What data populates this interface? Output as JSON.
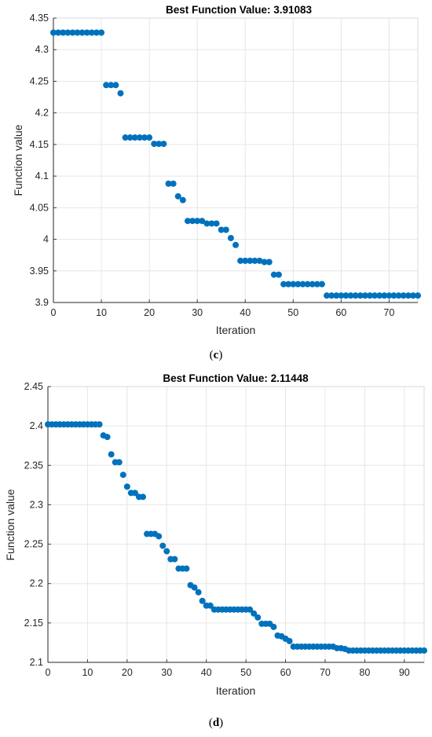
{
  "colors": {
    "marker": "#0072bd",
    "grid": "#e6e6e6"
  },
  "chart_data": [
    {
      "type": "scatter",
      "title": "Best Function Value: 3.91083",
      "xlabel": "Iteration",
      "ylabel": "Function value",
      "caption_pre": "(",
      "caption_letter": "c",
      "caption_post": ")",
      "xlim": [
        0,
        76
      ],
      "ylim": [
        3.9,
        4.35
      ],
      "xticks": [
        0,
        10,
        20,
        30,
        40,
        50,
        60,
        70
      ],
      "yticks": [
        3.9,
        3.95,
        4.0,
        4.05,
        4.1,
        4.15,
        4.2,
        4.25,
        4.3,
        4.35
      ],
      "xtick_labels": [
        "0",
        "10",
        "20",
        "30",
        "40",
        "50",
        "60",
        "70"
      ],
      "ytick_labels": [
        "3.9",
        "3.95",
        "4",
        "4.05",
        "4.1",
        "4.15",
        "4.2",
        "4.25",
        "4.3",
        "4.35"
      ],
      "grid": true,
      "x": [
        0,
        1,
        2,
        3,
        4,
        5,
        6,
        7,
        8,
        9,
        10,
        11,
        12,
        13,
        14,
        15,
        16,
        17,
        18,
        19,
        20,
        21,
        22,
        23,
        24,
        25,
        26,
        27,
        28,
        29,
        30,
        31,
        32,
        33,
        34,
        35,
        36,
        37,
        38,
        39,
        40,
        41,
        42,
        43,
        44,
        45,
        46,
        47,
        48,
        49,
        50,
        51,
        52,
        53,
        54,
        55,
        56,
        57,
        58,
        59,
        60,
        61,
        62,
        63,
        64,
        65,
        66,
        67,
        68,
        69,
        70,
        71,
        72,
        73,
        74,
        75,
        76
      ],
      "y": [
        4.327,
        4.327,
        4.327,
        4.327,
        4.327,
        4.327,
        4.327,
        4.327,
        4.327,
        4.327,
        4.327,
        4.244,
        4.244,
        4.244,
        4.231,
        4.161,
        4.161,
        4.161,
        4.161,
        4.161,
        4.161,
        4.151,
        4.151,
        4.151,
        4.088,
        4.088,
        4.068,
        4.062,
        4.029,
        4.029,
        4.029,
        4.029,
        4.025,
        4.025,
        4.025,
        4.015,
        4.015,
        4.002,
        3.991,
        3.966,
        3.966,
        3.966,
        3.966,
        3.966,
        3.964,
        3.964,
        3.944,
        3.944,
        3.929,
        3.929,
        3.929,
        3.929,
        3.929,
        3.929,
        3.929,
        3.929,
        3.929,
        3.911,
        3.911,
        3.911,
        3.911,
        3.911,
        3.911,
        3.911,
        3.911,
        3.911,
        3.911,
        3.911,
        3.911,
        3.911,
        3.911,
        3.911,
        3.911,
        3.911,
        3.911,
        3.911,
        3.911
      ]
    },
    {
      "type": "scatter",
      "title": "Best Function Value: 2.11448",
      "xlabel": "Iteration",
      "ylabel": "Function value",
      "caption_pre": "(",
      "caption_letter": "d",
      "caption_post": ")",
      "xlim": [
        0,
        95
      ],
      "ylim": [
        2.1,
        2.45
      ],
      "xticks": [
        0,
        10,
        20,
        30,
        40,
        50,
        60,
        70,
        80,
        90
      ],
      "yticks": [
        2.1,
        2.15,
        2.2,
        2.25,
        2.3,
        2.35,
        2.4,
        2.45
      ],
      "xtick_labels": [
        "0",
        "10",
        "20",
        "30",
        "40",
        "50",
        "60",
        "70",
        "80",
        "90"
      ],
      "ytick_labels": [
        "2.1",
        "2.15",
        "2.2",
        "2.25",
        "2.3",
        "2.35",
        "2.4",
        "2.45"
      ],
      "grid": true,
      "x": [
        0,
        1,
        2,
        3,
        4,
        5,
        6,
        7,
        8,
        9,
        10,
        11,
        12,
        13,
        14,
        15,
        16,
        17,
        18,
        19,
        20,
        21,
        22,
        23,
        24,
        25,
        26,
        27,
        28,
        29,
        30,
        31,
        32,
        33,
        34,
        35,
        36,
        37,
        38,
        39,
        40,
        41,
        42,
        43,
        44,
        45,
        46,
        47,
        48,
        49,
        50,
        51,
        52,
        53,
        54,
        55,
        56,
        57,
        58,
        59,
        60,
        61,
        62,
        63,
        64,
        65,
        66,
        67,
        68,
        69,
        70,
        71,
        72,
        73,
        74,
        75,
        76,
        77,
        78,
        79,
        80,
        81,
        82,
        83,
        84,
        85,
        86,
        87,
        88,
        89,
        90,
        91,
        92,
        93,
        94,
        95
      ],
      "y": [
        2.402,
        2.402,
        2.402,
        2.402,
        2.402,
        2.402,
        2.402,
        2.402,
        2.402,
        2.402,
        2.402,
        2.402,
        2.402,
        2.402,
        2.388,
        2.386,
        2.364,
        2.354,
        2.354,
        2.338,
        2.323,
        2.315,
        2.315,
        2.31,
        2.31,
        2.263,
        2.263,
        2.263,
        2.26,
        2.248,
        2.241,
        2.231,
        2.231,
        2.219,
        2.219,
        2.219,
        2.198,
        2.195,
        2.189,
        2.178,
        2.172,
        2.172,
        2.167,
        2.167,
        2.167,
        2.167,
        2.167,
        2.167,
        2.167,
        2.167,
        2.167,
        2.167,
        2.162,
        2.157,
        2.149,
        2.149,
        2.149,
        2.145,
        2.134,
        2.133,
        2.13,
        2.127,
        2.12,
        2.12,
        2.12,
        2.12,
        2.12,
        2.12,
        2.12,
        2.12,
        2.12,
        2.12,
        2.12,
        2.118,
        2.118,
        2.117,
        2.115,
        2.115,
        2.115,
        2.115,
        2.115,
        2.115,
        2.115,
        2.115,
        2.115,
        2.115,
        2.115,
        2.115,
        2.115,
        2.115,
        2.115,
        2.115,
        2.115,
        2.115,
        2.115,
        2.115
      ]
    }
  ]
}
